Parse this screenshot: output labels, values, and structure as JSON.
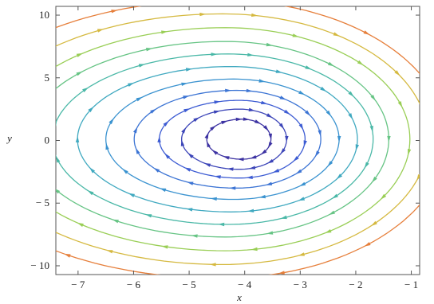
{
  "chart_data": {
    "type": "streamplot",
    "xlabel": "x",
    "ylabel": "y",
    "xlim": [
      -7.4,
      -0.85
    ],
    "ylim": [
      -10.7,
      10.7
    ],
    "x_ticks": [
      -7,
      -6,
      -5,
      -4,
      -3,
      -2,
      -1
    ],
    "y_ticks": [
      -10,
      -5,
      0,
      5,
      10
    ],
    "x_tick_labels": [
      "− 7",
      "− 6",
      "− 5",
      "− 4",
      "− 3",
      "− 2",
      "− 1"
    ],
    "y_tick_labels": [
      "− 10",
      "− 5",
      "0",
      "5",
      "10"
    ],
    "field": {
      "description_of_flow": "clockwise spiral around a center",
      "center": [
        -4.0,
        0.3
      ],
      "speed_color_scale": [
        "#3b1f8c",
        "#3d5fd6",
        "#3aa0cf",
        "#4fbf9a",
        "#9ccf52",
        "#e3b43c",
        "#e7683a"
      ]
    },
    "streamlines": [
      {
        "center": [
          -4.05,
          0.1
        ],
        "rx": 0.55,
        "ry": 1.6,
        "speed": 0.05
      },
      {
        "center": [
          -4.1,
          0.1
        ],
        "rx": 0.9,
        "ry": 2.4,
        "speed": 0.1
      },
      {
        "center": [
          -4.1,
          0.1
        ],
        "rx": 1.25,
        "ry": 3.1,
        "speed": 0.16
      },
      {
        "center": [
          -4.15,
          0.1
        ],
        "rx": 1.6,
        "ry": 3.9,
        "speed": 0.22
      },
      {
        "center": [
          -4.2,
          0.1
        ],
        "rx": 2.0,
        "ry": 4.8,
        "speed": 0.3
      },
      {
        "center": [
          -4.25,
          0.1
        ],
        "rx": 2.4,
        "ry": 5.8,
        "speed": 0.38
      },
      {
        "center": [
          -4.3,
          0.1
        ],
        "rx": 2.75,
        "ry": 6.8,
        "speed": 0.46
      },
      {
        "center": [
          -4.35,
          0.1
        ],
        "rx": 3.1,
        "ry": 7.8,
        "speed": 0.55
      },
      {
        "center": [
          -4.35,
          0.1
        ],
        "rx": 3.5,
        "ry": 8.9,
        "speed": 0.66
      },
      {
        "center": [
          -4.4,
          0.1
        ],
        "rx": 3.9,
        "ry": 10.0,
        "speed": 0.8
      },
      {
        "center": [
          -4.45,
          0.1
        ],
        "rx": 4.3,
        "ry": 11.1,
        "speed": 0.95
      }
    ]
  }
}
